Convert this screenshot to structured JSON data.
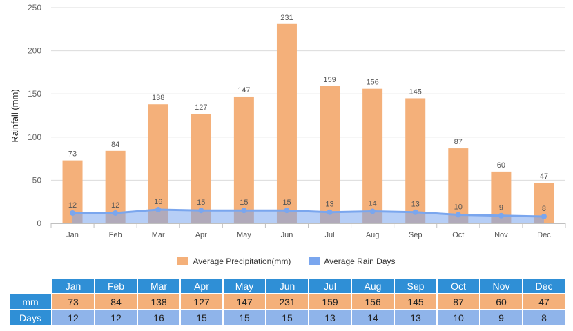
{
  "chart_data": {
    "type": "bar",
    "categories": [
      "Jan",
      "Feb",
      "Mar",
      "Apr",
      "May",
      "Jun",
      "Jul",
      "Aug",
      "Sep",
      "Oct",
      "Nov",
      "Dec"
    ],
    "series": [
      {
        "name": "Average Precipitation(mm)",
        "type": "bar",
        "values": [
          73,
          84,
          138,
          127,
          147,
          231,
          159,
          156,
          145,
          87,
          60,
          47
        ],
        "color": "#f4b07a"
      },
      {
        "name": "Average Rain Days",
        "type": "area",
        "values": [
          12,
          12,
          16,
          15,
          15,
          15,
          13,
          14,
          13,
          10,
          9,
          8
        ],
        "color": "#7aa6ee"
      }
    ],
    "ylabel": "Rainfall (mm)",
    "xlabel": "",
    "ylim": [
      0,
      250
    ],
    "yticks": [
      0,
      50,
      100,
      150,
      200,
      250
    ],
    "grid": true,
    "legend": "bottom"
  },
  "table": {
    "row_labels": {
      "mm": "mm",
      "days": "Days"
    }
  }
}
